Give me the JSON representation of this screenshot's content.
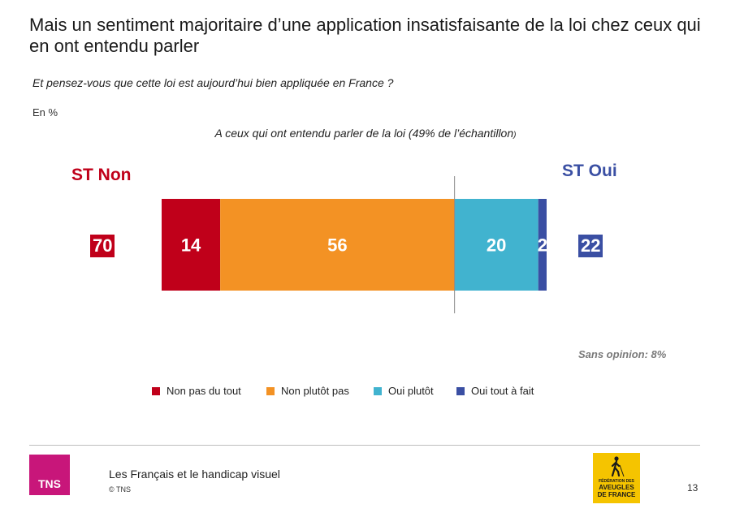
{
  "header": {
    "title": "Mais un sentiment majoritaire d’une application insatisfaisante de la loi chez ceux qui en ont entendu parler",
    "question": "Et pensez-vous que cette loi est aujourd’hui bien appliquée en France ?",
    "unit": "En %",
    "subtitle_main": "A ceux qui ont entendu parler de la loi (49% de l’échantillon",
    "subtitle_close": ")"
  },
  "chart_data": {
    "type": "bar",
    "orientation": "horizontal-stacked",
    "categories": [
      "A ceux qui ont entendu parler de la loi"
    ],
    "series": [
      {
        "name": "Non pas du tout",
        "values": [
          14
        ],
        "color": "#c0001a"
      },
      {
        "name": "Non plutôt pas",
        "values": [
          56
        ],
        "color": "#f39224"
      },
      {
        "name": "Oui plutôt",
        "values": [
          20
        ],
        "color": "#41b3cf"
      },
      {
        "name": "Oui tout à fait",
        "values": [
          2
        ],
        "color": "#3a4fa3"
      }
    ],
    "value_labels": [
      "14",
      "56",
      "20",
      "2"
    ],
    "xlim": [
      0,
      92
    ],
    "divider_at": 70,
    "grid": false,
    "legend_position": "bottom"
  },
  "summary": {
    "st_non_label": "ST Non",
    "st_non_value": "70",
    "st_oui_label": "ST Oui",
    "st_oui_value": "22",
    "sans_opinion": "Sans opinion: 8%"
  },
  "footer": {
    "logo_text": "TNS",
    "title": "Les Français et le handicap visuel",
    "copyright": "© TNS",
    "partner_logo_small": "FÉDÉRATION DES",
    "partner_logo_line1": "AVEUGLES",
    "partner_logo_line2": "DE FRANCE",
    "page_number": "13"
  },
  "colors": {
    "non": "#c0001a",
    "oui": "#3a4fa3",
    "tns": "#c8167a",
    "partner": "#f5c400"
  }
}
